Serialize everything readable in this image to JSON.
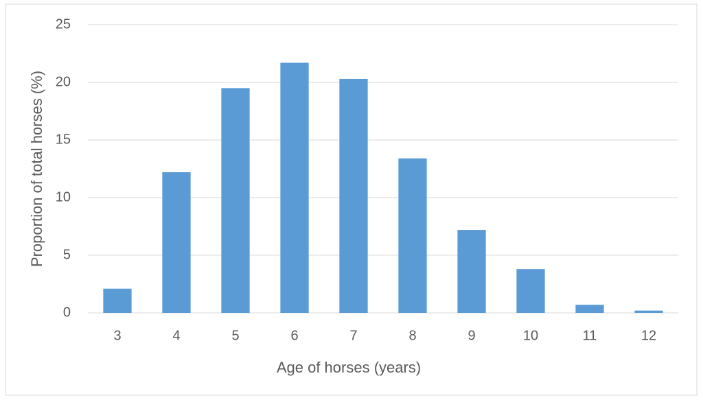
{
  "chart_data": {
    "type": "bar",
    "x_label": "Age of horses (years)",
    "y_label": "Proportion of total horses (%)",
    "categories": [
      "3",
      "4",
      "5",
      "6",
      "7",
      "8",
      "9",
      "10",
      "11",
      "12"
    ],
    "values": [
      2.1,
      12.2,
      19.5,
      21.7,
      20.3,
      13.4,
      7.2,
      3.8,
      0.7,
      0.2
    ],
    "color": "#5b9bd5",
    "ylim": [
      0,
      25
    ],
    "yticks": [
      0,
      5,
      10,
      15,
      20,
      25
    ],
    "grid": true
  }
}
